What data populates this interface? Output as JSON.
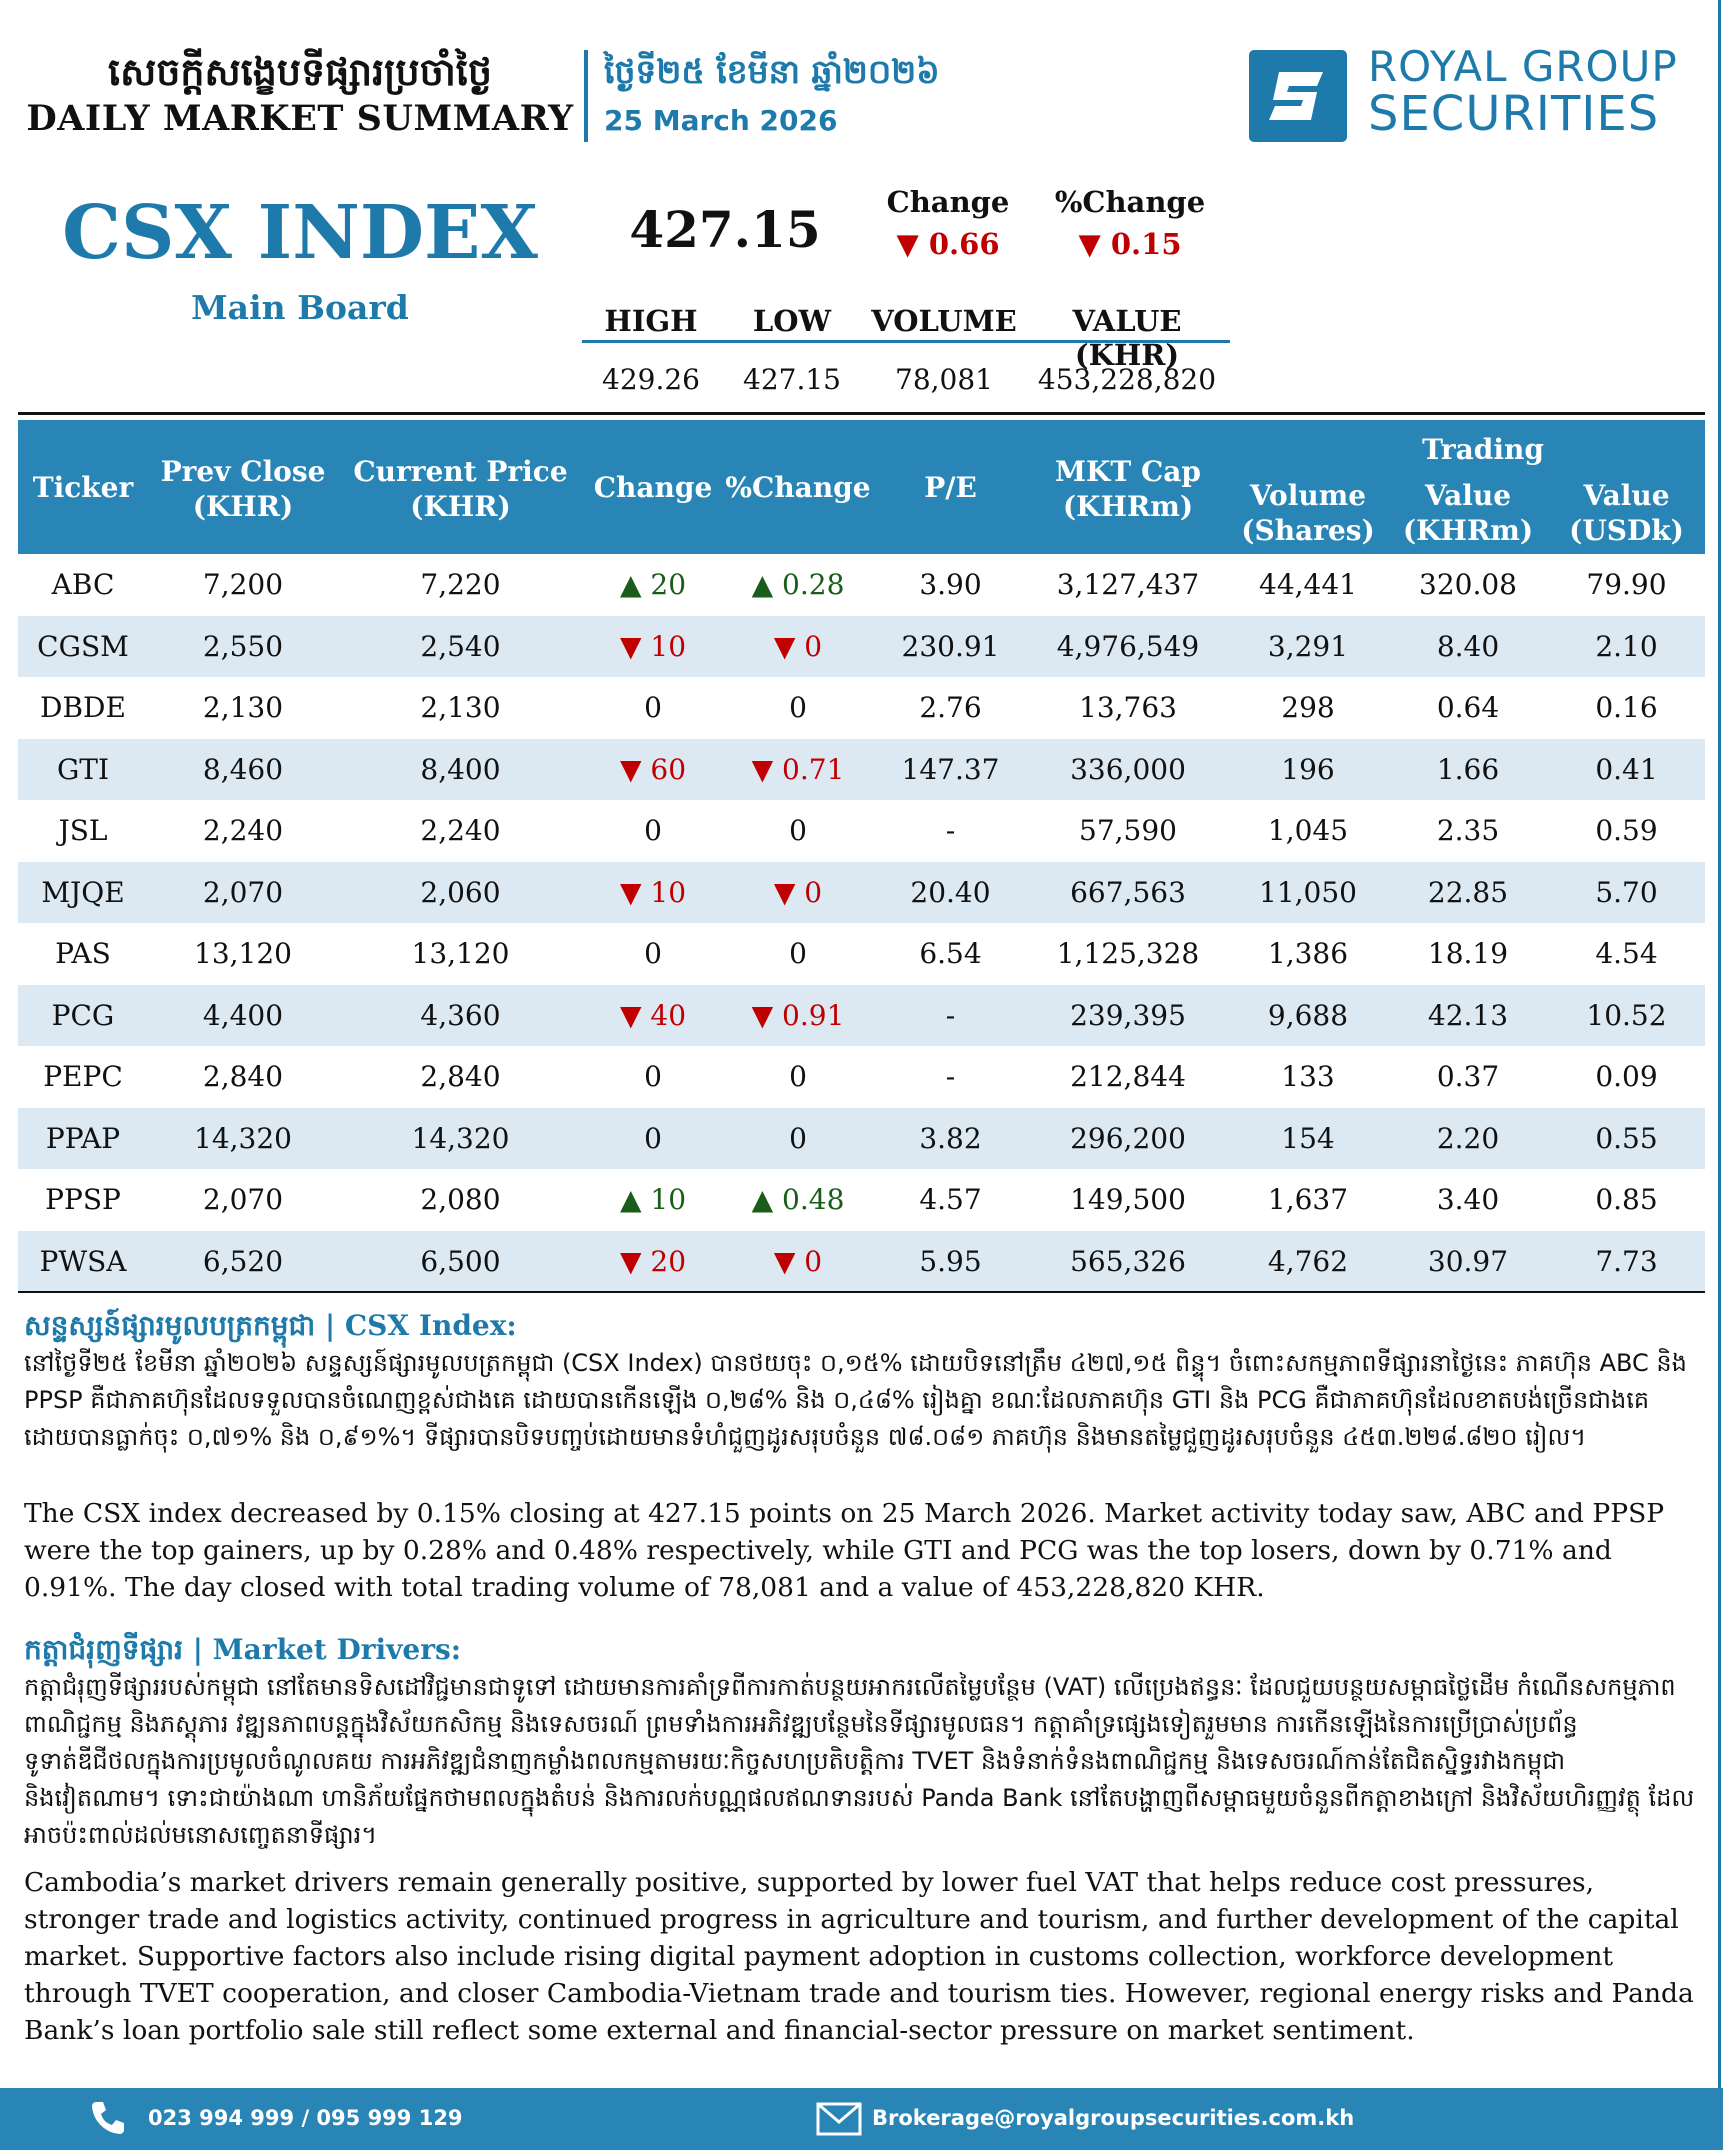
{
  "header": {
    "title_kh": "សេចក្ដីសង្ខេបទីផ្សារប្រចាំថ្ងៃ",
    "title_en": "DAILY MARKET SUMMARY",
    "date_kh": "ថ្ងៃទី២៥ ខែមីនា ឆ្នាំ២០២៦",
    "date_en": "25 March 2026",
    "logo_line1": "ROYAL GROUP",
    "logo_line2": "SECURITIES"
  },
  "index": {
    "title": "CSX INDEX",
    "subtitle": "Main Board",
    "value": "427.15",
    "change_label": "Change",
    "change_value": "▼ 0.66",
    "pct_label": "%Change",
    "pct_value": "▼ 0.15",
    "stats": [
      {
        "label": "HIGH",
        "value": "429.26"
      },
      {
        "label": "LOW",
        "value": "427.15"
      },
      {
        "label": "VOLUME",
        "value": "78,081"
      },
      {
        "label": "VALUE (KHR)",
        "value": "453,228,820"
      }
    ]
  },
  "table": {
    "headers": {
      "ticker": "Ticker",
      "prev_close": "Prev Close",
      "prev_close_unit": "(KHR)",
      "current_price": "Current Price",
      "current_price_unit": "(KHR)",
      "change": "Change",
      "pct_change": "%Change",
      "pe": "P/E",
      "mkt_cap": "MKT Cap",
      "mkt_cap_unit": "(KHRm)",
      "trading": "Trading",
      "volume": "Volume",
      "volume_unit": "(Shares)",
      "value": "Value",
      "value_khr_unit": "(KHRm)",
      "value_usd": "Value",
      "value_usd_unit": "(USDk)"
    },
    "rows": [
      {
        "ticker": "ABC",
        "prev": "7,200",
        "cur": "7,220",
        "chg": "▲ 20",
        "pct": "▲ 0.28",
        "dir": "up",
        "pe": "3.90",
        "cap": "3,127,437",
        "vol": "44,441",
        "val_khr": "320.08",
        "val_usd": "79.90"
      },
      {
        "ticker": "CGSM",
        "prev": "2,550",
        "cur": "2,540",
        "chg": "▼ 10",
        "pct": "▼ 0",
        "dir": "dn",
        "pe": "230.91",
        "cap": "4,976,549",
        "vol": "3,291",
        "val_khr": "8.40",
        "val_usd": "2.10"
      },
      {
        "ticker": "DBDE",
        "prev": "2,130",
        "cur": "2,130",
        "chg": "0",
        "pct": "0",
        "dir": "",
        "pe": "2.76",
        "cap": "13,763",
        "vol": "298",
        "val_khr": "0.64",
        "val_usd": "0.16"
      },
      {
        "ticker": "GTI",
        "prev": "8,460",
        "cur": "8,400",
        "chg": "▼ 60",
        "pct": "▼ 0.71",
        "dir": "dn",
        "pe": "147.37",
        "cap": "336,000",
        "vol": "196",
        "val_khr": "1.66",
        "val_usd": "0.41"
      },
      {
        "ticker": "JSL",
        "prev": "2,240",
        "cur": "2,240",
        "chg": "0",
        "pct": "0",
        "dir": "",
        "pe": "-",
        "cap": "57,590",
        "vol": "1,045",
        "val_khr": "2.35",
        "val_usd": "0.59"
      },
      {
        "ticker": "MJQE",
        "prev": "2,070",
        "cur": "2,060",
        "chg": "▼ 10",
        "pct": "▼ 0",
        "dir": "dn",
        "pe": "20.40",
        "cap": "667,563",
        "vol": "11,050",
        "val_khr": "22.85",
        "val_usd": "5.70"
      },
      {
        "ticker": "PAS",
        "prev": "13,120",
        "cur": "13,120",
        "chg": "0",
        "pct": "0",
        "dir": "",
        "pe": "6.54",
        "cap": "1,125,328",
        "vol": "1,386",
        "val_khr": "18.19",
        "val_usd": "4.54"
      },
      {
        "ticker": "PCG",
        "prev": "4,400",
        "cur": "4,360",
        "chg": "▼ 40",
        "pct": "▼ 0.91",
        "dir": "dn",
        "pe": "-",
        "cap": "239,395",
        "vol": "9,688",
        "val_khr": "42.13",
        "val_usd": "10.52"
      },
      {
        "ticker": "PEPC",
        "prev": "2,840",
        "cur": "2,840",
        "chg": "0",
        "pct": "0",
        "dir": "",
        "pe": "-",
        "cap": "212,844",
        "vol": "133",
        "val_khr": "0.37",
        "val_usd": "0.09"
      },
      {
        "ticker": "PPAP",
        "prev": "14,320",
        "cur": "14,320",
        "chg": "0",
        "pct": "0",
        "dir": "",
        "pe": "3.82",
        "cap": "296,200",
        "vol": "154",
        "val_khr": "2.20",
        "val_usd": "0.55"
      },
      {
        "ticker": "PPSP",
        "prev": "2,070",
        "cur": "2,080",
        "chg": "▲ 10",
        "pct": "▲ 0.48",
        "dir": "up",
        "pe": "4.57",
        "cap": "149,500",
        "vol": "1,637",
        "val_khr": "3.40",
        "val_usd": "0.85"
      },
      {
        "ticker": "PWSA",
        "prev": "6,520",
        "cur": "6,500",
        "chg": "▼ 20",
        "pct": "▼ 0",
        "dir": "dn",
        "pe": "5.95",
        "cap": "565,326",
        "vol": "4,762",
        "val_khr": "30.97",
        "val_usd": "7.73"
      }
    ]
  },
  "csx_section": {
    "title": "សន្ទស្សន៍ផ្សារមូលបត្រកម្ពុជា | CSX Index:",
    "text_kh": "នៅថ្ងៃទី២៥ ខែមីនា ឆ្នាំ២០២៦ សន្ទស្សន៍ផ្សារមូលបត្រកម្ពុជា (CSX Index) បានថយចុះ ០,១៥% ដោយបិទនៅត្រឹម ៤២៧,១៥ ពិន្ទុ។ ចំពោះសកម្មភាពទីផ្សារនាថ្ងៃនេះ ភាគហ៊ុន ABC និង PPSP គឺជាភាគហ៊ុនដែលទទួលបានចំណេញខ្ពស់ជាងគេ ដោយបានកើនឡើង ០,២៨% និង ០,៤៨% រៀងគ្នា ខណៈដែលភាគហ៊ុន GTI និង PCG គឺជាភាគហ៊ុនដែលខាតបង់ច្រើនជាងគេ ដោយបានធ្លាក់ចុះ ០,៧១% និង ០,៩១%។ ទីផ្សារបានបិទបញ្ចប់ដោយមានទំហំជួញដូរសរុបចំនួន ៧៨.០៨១ ភាគហ៊ុន និងមានតម្លៃជួញដូរសរុបចំនួន ៤៥៣.២២៨.៨២០ រៀល។",
    "text_en": "The CSX index decreased by 0.15% closing at 427.15 points on 25 March 2026. Market activity today saw, ABC and PPSP were the top gainers, up by 0.28% and 0.48% respectively, while GTI and PCG was the top losers, down by 0.71% and 0.91%. The day closed with total trading volume of 78,081 and a value of 453,228,820 KHR."
  },
  "drivers_section": {
    "title": "កត្តាជំរុញទីផ្សារ | Market Drivers:",
    "text_kh": "កត្តាជំរុញទីផ្សាររបស់កម្ពុជា នៅតែមានទិសដៅវិជ្ជមានជាទូទៅ ដោយមានការគាំទ្រពីការកាត់បន្ថយអាករលើតម្លៃបន្ថែម (VAT) លើប្រេងឥន្ធនៈ ដែលជួយបន្ថយសម្ពាធថ្លៃដើម កំណើនសកម្មភាពពាណិជ្ជកម្ម និងភស្តុភារ វឌ្ឍនភាពបន្តក្នុងវិស័យកសិកម្ម និងទេសចរណ៍ ព្រមទាំងការអភិវឌ្ឍបន្ថែមនៃទីផ្សារមូលធន។ កត្តាគាំទ្រផ្សេងទៀតរួមមាន ការកើនឡើងនៃការប្រើប្រាស់ប្រព័ន្ធទូទាត់ឌីជីថលក្នុងការប្រមូលចំណូលគយ ការអភិវឌ្ឍជំនាញកម្លាំងពលកម្មតាមរយៈកិច្ចសហប្រតិបត្តិការ TVET និងទំនាក់ទំនងពាណិជ្ជកម្ម និងទេសចរណ៍កាន់តែជិតស្និទ្ធរវាងកម្ពុជា និងវៀតណាម។ ទោះជាយ៉ាងណា ហានិភ័យផ្នែកថាមពលក្នុងតំបន់ និងការលក់បណ្ណផលឥណទានរបស់ Panda Bank នៅតែបង្ហាញពីសម្ពាធមួយចំនួនពីកត្តាខាងក្រៅ និងវិស័យហិរញ្ញវត្ថុ ដែលអាចប៉ះពាល់ដល់មនោសញ្ចេតនាទីផ្សារ។",
    "text_en": "Cambodia’s market drivers remain generally positive, supported by lower fuel VAT that helps reduce cost pressures, stronger trade and logistics activity, continued progress in agriculture and tourism, and further development of the capital market. Supportive factors also include rising digital payment adoption in customs collection, workforce development through TVET cooperation, and closer Cambodia-Vietnam trade and tourism ties. However, regional energy risks and Panda Bank’s loan portfolio sale still reflect some external and financial-sector pressure on market sentiment."
  },
  "footer": {
    "phone_icon": "phone-icon",
    "phone": "023 994 999 / 095 999 129",
    "mail_icon": "envelope-icon",
    "email": "Brokerage@royalgroupsecurities.com.kh"
  },
  "colors": {
    "brand": "#1e7aaa",
    "header_fill": "#2985b5",
    "row_alt": "#dce9f3",
    "down": "#c00000",
    "up": "#1a5c1a"
  }
}
